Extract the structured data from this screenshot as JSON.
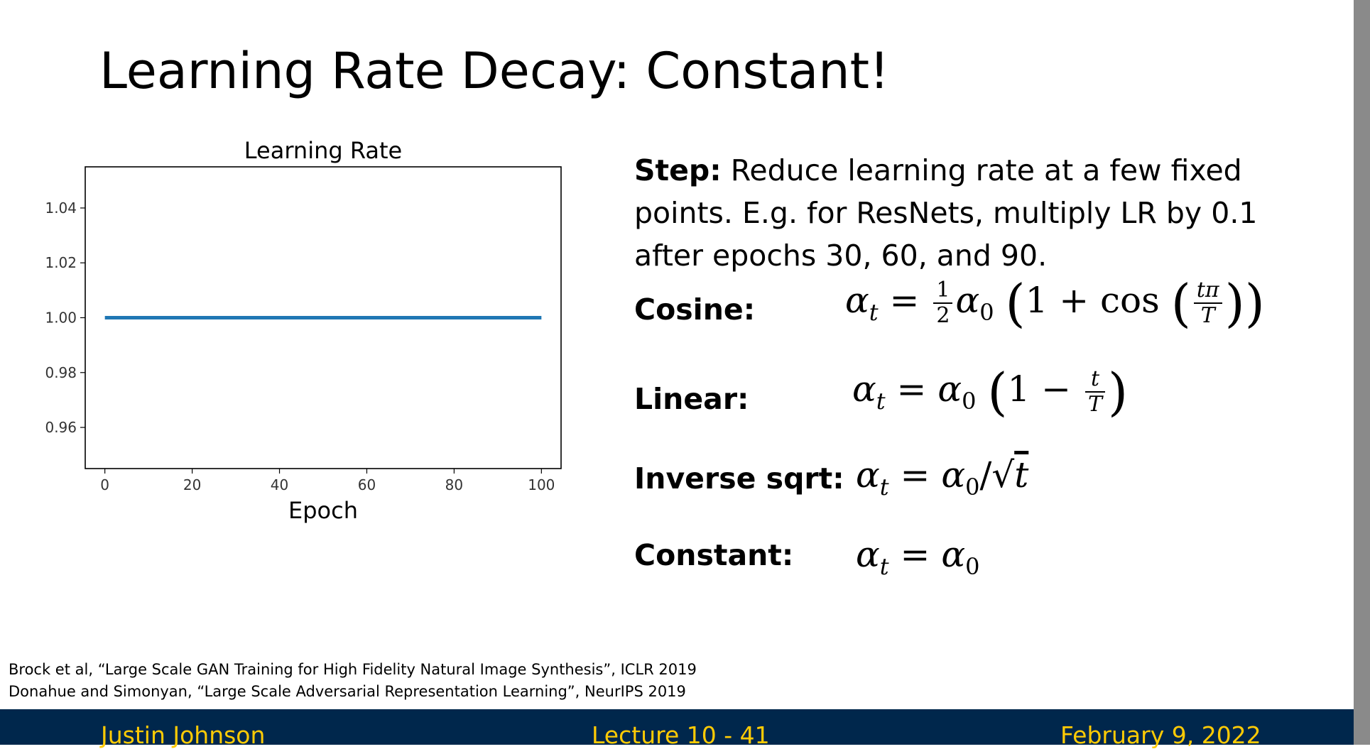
{
  "slide": {
    "title_main": "Learning Rate Decay",
    "title_rest": ": Constant!"
  },
  "step": {
    "label": "Step:",
    "text": " Reduce learning rate at a few fixed points. E.g. for ResNets, multiply LR by 0.1 after epochs 30, 60, and 90."
  },
  "schedules": {
    "cosine_label": "Cosine:",
    "linear_label": "Linear:",
    "invsqrt_label": "Inverse sqrt:",
    "constant_label": "Constant:"
  },
  "references": [
    "Brock et al, “Large Scale GAN Training for High Fidelity Natural Image Synthesis”, ICLR 2019",
    "Donahue and Simonyan, “Large Scale Adversarial Representation Learning”, NeurIPS 2019"
  ],
  "footer": {
    "author": "Justin Johnson",
    "lecture": "Lecture 10 - 41",
    "date": "February 9, 2022"
  },
  "colors": {
    "footer_bg": "#00274c",
    "footer_text": "#ffcb05",
    "line": "#1f77b4"
  },
  "chart_data": {
    "type": "line",
    "title": "Learning Rate",
    "xlabel": "Epoch",
    "ylabel": "",
    "x": [
      0,
      100
    ],
    "series": [
      {
        "values": [
          1.0,
          1.0
        ]
      }
    ],
    "xticks": [
      0,
      20,
      40,
      60,
      80,
      100
    ],
    "yticks": [
      0.96,
      0.98,
      1.0,
      1.02,
      1.04
    ],
    "ytick_labels": [
      "0.96",
      "0.98",
      "1.00",
      "1.02",
      "1.04"
    ],
    "xlim": [
      -4.5,
      104.5
    ],
    "ylim": [
      0.945,
      1.055
    ],
    "grid": false
  }
}
